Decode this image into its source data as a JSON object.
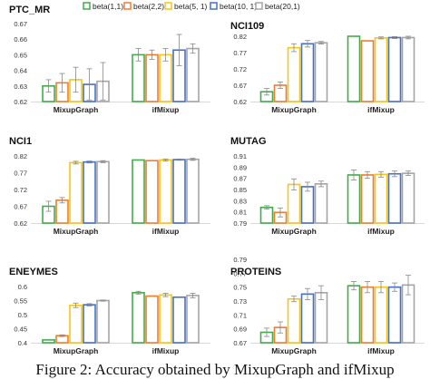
{
  "caption": "Figure 2: Accuracy obtained by MixupGraph and ifMixup",
  "legend": [
    {
      "label": "beta(1,1)",
      "color": "#3fae49"
    },
    {
      "label": "beta(2,2)",
      "color": "#ef7d31"
    },
    {
      "label": "beta(5, 1)",
      "color": "#f5c518"
    },
    {
      "label": "beta(10, 1)",
      "color": "#4472c4"
    },
    {
      "label": "beta(20,1)",
      "color": "#a5a5a5"
    }
  ],
  "chart_data": [
    {
      "type": "bar",
      "title": "PTC_MR",
      "categories": [
        "MixupGraph",
        "ifMixup"
      ],
      "ylim": [
        0.62,
        0.67
      ],
      "yticks": [
        "0.62",
        "0.63",
        "0.64",
        "0.65",
        "0.66",
        "0.67"
      ],
      "series": [
        {
          "name": "beta(1,1)",
          "values": [
            0.63,
            0.65
          ],
          "errors": [
            0.004,
            0.004
          ]
        },
        {
          "name": "beta(2,2)",
          "values": [
            0.632,
            0.65
          ],
          "errors": [
            0.006,
            0.003
          ]
        },
        {
          "name": "beta(5, 1)",
          "values": [
            0.634,
            0.65
          ],
          "errors": [
            0.008,
            0.004
          ]
        },
        {
          "name": "beta(10, 1)",
          "values": [
            0.631,
            0.653
          ],
          "errors": [
            0.01,
            0.01
          ]
        },
        {
          "name": "beta(20,1)",
          "values": [
            0.633,
            0.654
          ],
          "errors": [
            0.012,
            0.003
          ]
        }
      ]
    },
    {
      "type": "bar",
      "title": "NCI109",
      "categories": [
        "MixupGraph",
        "ifMixup"
      ],
      "ylim": [
        0.62,
        0.82
      ],
      "yticks": [
        "0.62",
        "0.67",
        "0.72",
        "0.77",
        "0.82"
      ],
      "series": [
        {
          "name": "beta(1,1)",
          "values": [
            0.65,
            0.82
          ],
          "errors": [
            0.01,
            0.0
          ]
        },
        {
          "name": "beta(2,2)",
          "values": [
            0.67,
            0.806
          ],
          "errors": [
            0.01,
            0.0
          ]
        },
        {
          "name": "beta(5, 1)",
          "values": [
            0.785,
            0.815
          ],
          "errors": [
            0.012,
            0.003
          ]
        },
        {
          "name": "beta(10, 1)",
          "values": [
            0.797,
            0.816
          ],
          "errors": [
            0.01,
            0.003
          ]
        },
        {
          "name": "beta(20,1)",
          "values": [
            0.8,
            0.816
          ],
          "errors": [
            0.004,
            0.004
          ]
        }
      ]
    },
    {
      "type": "bar",
      "title": "NCI1",
      "categories": [
        "MixupGraph",
        "ifMixup"
      ],
      "ylim": [
        0.62,
        0.82
      ],
      "yticks": [
        "0.62",
        "0.67",
        "0.72",
        "0.77",
        "0.82"
      ],
      "series": [
        {
          "name": "beta(1,1)",
          "values": [
            0.67,
            0.808
          ],
          "errors": [
            0.015,
            0.0
          ]
        },
        {
          "name": "beta(2,2)",
          "values": [
            0.688,
            0.806
          ],
          "errors": [
            0.008,
            0.0
          ]
        },
        {
          "name": "beta(5, 1)",
          "values": [
            0.8,
            0.808
          ],
          "errors": [
            0.004,
            0.003
          ]
        },
        {
          "name": "beta(10, 1)",
          "values": [
            0.802,
            0.809
          ],
          "errors": [
            0.003,
            0.002
          ]
        },
        {
          "name": "beta(20,1)",
          "values": [
            0.803,
            0.81
          ],
          "errors": [
            0.003,
            0.003
          ]
        }
      ]
    },
    {
      "type": "bar",
      "title": "MUTAG",
      "categories": [
        "MixupGraph",
        "ifMixup"
      ],
      "ylim": [
        0.79,
        0.91
      ],
      "yticks": [
        "0.79",
        "0.81",
        "0.83",
        "0.85",
        "0.87",
        "0.89",
        "0.91"
      ],
      "series": [
        {
          "name": "beta(1,1)",
          "values": [
            0.818,
            0.876
          ],
          "errors": [
            0.003,
            0.009
          ]
        },
        {
          "name": "beta(2,2)",
          "values": [
            0.809,
            0.876
          ],
          "errors": [
            0.008,
            0.006
          ]
        },
        {
          "name": "beta(5, 1)",
          "values": [
            0.859,
            0.877
          ],
          "errors": [
            0.01,
            0.005
          ]
        },
        {
          "name": "beta(10, 1)",
          "values": [
            0.855,
            0.878
          ],
          "errors": [
            0.008,
            0.005
          ]
        },
        {
          "name": "beta(20,1)",
          "values": [
            0.86,
            0.879
          ],
          "errors": [
            0.005,
            0.004
          ]
        }
      ]
    },
    {
      "type": "bar",
      "title": "ENEYMES",
      "categories": [
        "MixupGraph",
        "ifMixup"
      ],
      "ylim": [
        0.4,
        0.6
      ],
      "yticks": [
        "0.4",
        "0.45",
        "0.5",
        "0.55",
        "0.6"
      ],
      "series": [
        {
          "name": "beta(1,1)",
          "values": [
            0.41,
            0.578
          ],
          "errors": [
            0.0,
            0.005
          ]
        },
        {
          "name": "beta(2,2)",
          "values": [
            0.425,
            0.566
          ],
          "errors": [
            0.003,
            0.0
          ]
        },
        {
          "name": "beta(5, 1)",
          "values": [
            0.533,
            0.57
          ],
          "errors": [
            0.008,
            0.006
          ]
        },
        {
          "name": "beta(10, 1)",
          "values": [
            0.535,
            0.562
          ],
          "errors": [
            0.004,
            0.0
          ]
        },
        {
          "name": "beta(20,1)",
          "values": [
            0.55,
            0.568
          ],
          "errors": [
            0.002,
            0.008
          ]
        }
      ]
    },
    {
      "type": "bar",
      "title": "PROTEINS",
      "categories": [
        "MixupGraph",
        "ifMixup"
      ],
      "ylim": [
        0.67,
        0.79
      ],
      "yticks": [
        "0.67",
        "0.69",
        "0.71",
        "0.73",
        "0.75",
        "0.77",
        "0.79"
      ],
      "series": [
        {
          "name": "beta(1,1)",
          "values": [
            0.685,
            0.752
          ],
          "errors": [
            0.006,
            0.006
          ]
        },
        {
          "name": "beta(2,2)",
          "values": [
            0.692,
            0.75
          ],
          "errors": [
            0.008,
            0.008
          ]
        },
        {
          "name": "beta(5, 1)",
          "values": [
            0.733,
            0.75
          ],
          "errors": [
            0.004,
            0.008
          ]
        },
        {
          "name": "beta(10, 1)",
          "values": [
            0.74,
            0.75
          ],
          "errors": [
            0.008,
            0.006
          ]
        },
        {
          "name": "beta(20,1)",
          "values": [
            0.742,
            0.753
          ],
          "errors": [
            0.01,
            0.014
          ]
        }
      ]
    }
  ]
}
